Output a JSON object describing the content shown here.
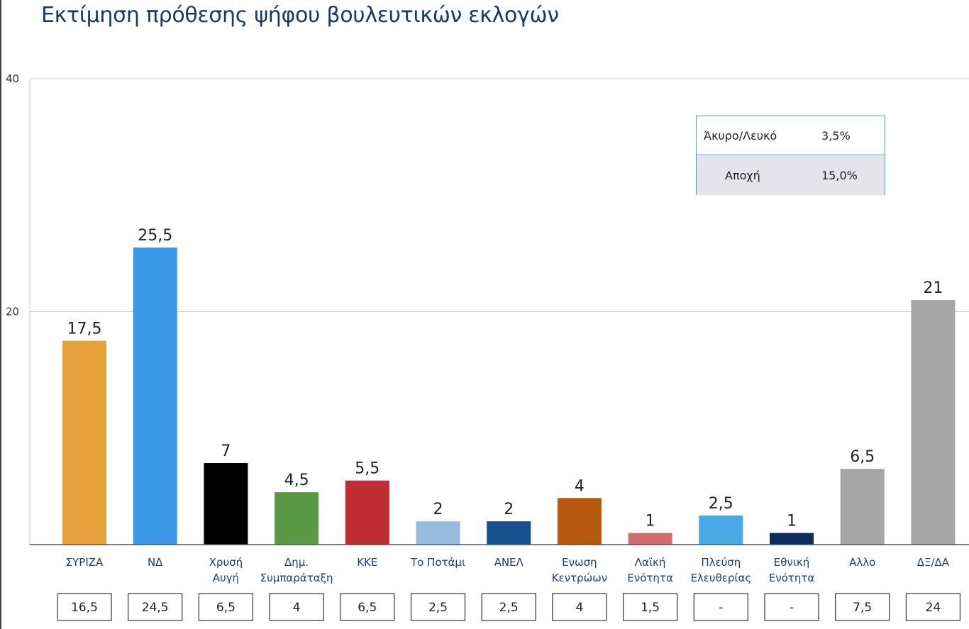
{
  "title": "Εκτίμηση πρόθεσης ψήφου βουλευτικών εκλογών",
  "chart_data": {
    "type": "bar",
    "title": "Εκτίμηση πρόθεσης ψήφου βουλευτικών εκλογών",
    "xlabel": "",
    "ylabel": "",
    "ylim": [
      0,
      40
    ],
    "yticks": [
      "20",
      "40"
    ],
    "grid": true,
    "categories": [
      [
        "ΣΥΡΙΖΑ"
      ],
      [
        "ΝΔ"
      ],
      [
        "Χρυσή",
        "Αυγή"
      ],
      [
        "Δημ.",
        "Συμπαράταξη"
      ],
      [
        "ΚΚΕ"
      ],
      [
        "Το Ποτάμι"
      ],
      [
        "ΑΝΕΛ"
      ],
      [
        "Ενωση",
        "Κεντρώων"
      ],
      [
        "Λαϊκή",
        "Ενότητα"
      ],
      [
        "Πλεύση",
        "Ελευθερίας"
      ],
      [
        "Εθνική",
        "Ενότητα"
      ],
      [
        "Αλλο"
      ],
      [
        "ΔΞ/ΔΑ"
      ]
    ],
    "values": [
      17.5,
      25.5,
      7,
      4.5,
      5.5,
      2,
      2,
      4,
      1,
      2.5,
      1,
      6.5,
      21
    ],
    "value_labels": [
      "17,5",
      "25,5",
      "7",
      "4,5",
      "5,5",
      "2",
      "2",
      "4",
      "1",
      "2,5",
      "1",
      "6,5",
      "21"
    ],
    "colors": [
      "#e8a23c",
      "#3a98e8",
      "#000000",
      "#5b9a44",
      "#bf2d33",
      "#98bcdf",
      "#17508f",
      "#b55a0e",
      "#d56a6e",
      "#4ba8e6",
      "#0c2b5e",
      "#a6a6a6",
      "#a6a6a6"
    ],
    "previous_values": [
      "16,5",
      "24,5",
      "6,5",
      "4",
      "6,5",
      "2,5",
      "2,5",
      "4",
      "1,5",
      "-",
      "-",
      "7,5",
      "24"
    ]
  },
  "legend": {
    "rows": [
      {
        "name": "Άκυρο/Λευκό",
        "value": "3,5%"
      },
      {
        "name": "Αποχή",
        "value": "15,0%"
      }
    ]
  }
}
